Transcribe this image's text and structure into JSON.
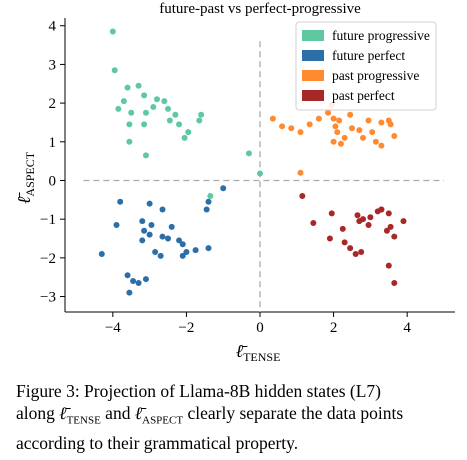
{
  "chart_data": {
    "type": "scatter",
    "title": "future-past vs perfect-progressive",
    "xlabel": "ℓ̄",
    "xlabel_sub": "TENSE",
    "ylabel": "ℓ̄",
    "ylabel_sub": "ASPECT",
    "xlim": [
      -5.3,
      5.3
    ],
    "ylim": [
      -3.4,
      4.2
    ],
    "xticks": [
      -4,
      -2,
      0,
      2,
      4
    ],
    "yticks": [
      -3,
      -2,
      -1,
      0,
      1,
      2,
      3,
      4
    ],
    "grid": false,
    "legend_position": "top-right",
    "reference_lines": {
      "x": 0,
      "y": 0,
      "style": "dashed",
      "color": "#aaaaaa"
    },
    "series": [
      {
        "name": "future progressive",
        "color": "#5ec8a0",
        "points": [
          [
            -4.0,
            3.85
          ],
          [
            -3.95,
            2.85
          ],
          [
            -3.6,
            2.4
          ],
          [
            -3.3,
            2.45
          ],
          [
            -3.15,
            2.2
          ],
          [
            -2.8,
            2.1
          ],
          [
            -2.6,
            2.05
          ],
          [
            -3.7,
            2.05
          ],
          [
            -3.85,
            1.85
          ],
          [
            -3.5,
            1.75
          ],
          [
            -3.1,
            1.75
          ],
          [
            -2.9,
            1.9
          ],
          [
            -2.5,
            1.85
          ],
          [
            -2.3,
            1.7
          ],
          [
            -2.45,
            1.55
          ],
          [
            -2.2,
            1.45
          ],
          [
            -1.6,
            1.7
          ],
          [
            -1.65,
            1.55
          ],
          [
            -1.95,
            1.25
          ],
          [
            -2.05,
            1.1
          ],
          [
            -3.55,
            1.45
          ],
          [
            -3.15,
            1.45
          ],
          [
            -3.55,
            1.0
          ],
          [
            -3.1,
            0.65
          ],
          [
            -0.3,
            0.7
          ],
          [
            0.0,
            0.18
          ],
          [
            -1.35,
            -0.4
          ]
        ]
      },
      {
        "name": "future perfect",
        "color": "#2a6fa8",
        "points": [
          [
            -1.0,
            -0.2
          ],
          [
            -1.4,
            -0.55
          ],
          [
            -1.45,
            -0.75
          ],
          [
            -3.0,
            -0.6
          ],
          [
            -3.8,
            -0.55
          ],
          [
            -2.65,
            -0.75
          ],
          [
            -3.9,
            -1.15
          ],
          [
            -3.2,
            -1.05
          ],
          [
            -3.15,
            -1.3
          ],
          [
            -2.95,
            -1.15
          ],
          [
            -3.0,
            -1.4
          ],
          [
            -2.4,
            -1.2
          ],
          [
            -2.65,
            -1.45
          ],
          [
            -2.5,
            -1.5
          ],
          [
            -3.2,
            -1.55
          ],
          [
            -2.2,
            -1.55
          ],
          [
            -2.1,
            -1.65
          ],
          [
            -2.85,
            -1.85
          ],
          [
            -2.7,
            -1.95
          ],
          [
            -1.75,
            -1.8
          ],
          [
            -2.0,
            -1.85
          ],
          [
            -2.1,
            -1.95
          ],
          [
            -1.4,
            -1.75
          ],
          [
            -4.3,
            -1.9
          ],
          [
            -3.6,
            -2.45
          ],
          [
            -3.45,
            -2.6
          ],
          [
            -3.3,
            -2.65
          ],
          [
            -3.1,
            -2.55
          ],
          [
            -3.55,
            -2.9
          ]
        ]
      },
      {
        "name": "past progressive",
        "color": "#ff8a30",
        "points": [
          [
            0.35,
            1.6
          ],
          [
            0.6,
            1.4
          ],
          [
            0.85,
            1.35
          ],
          [
            1.1,
            1.25
          ],
          [
            1.35,
            1.45
          ],
          [
            1.6,
            1.6
          ],
          [
            1.85,
            1.75
          ],
          [
            1.95,
            1.95
          ],
          [
            2.0,
            1.6
          ],
          [
            2.05,
            1.4
          ],
          [
            2.15,
            1.55
          ],
          [
            2.1,
            1.25
          ],
          [
            2.0,
            1.0
          ],
          [
            2.2,
            0.95
          ],
          [
            2.3,
            1.1
          ],
          [
            2.45,
            1.7
          ],
          [
            2.5,
            1.35
          ],
          [
            2.7,
            1.3
          ],
          [
            2.8,
            1.1
          ],
          [
            2.95,
            1.55
          ],
          [
            3.05,
            1.25
          ],
          [
            3.15,
            1.0
          ],
          [
            3.3,
            1.5
          ],
          [
            3.5,
            1.55
          ],
          [
            3.65,
            1.15
          ],
          [
            3.3,
            0.9
          ],
          [
            3.55,
            1.45
          ],
          [
            1.1,
            0.2
          ]
        ]
      },
      {
        "name": "past perfect",
        "color": "#a82828",
        "points": [
          [
            1.15,
            -0.4
          ],
          [
            1.45,
            -1.1
          ],
          [
            1.9,
            -1.5
          ],
          [
            1.95,
            -0.85
          ],
          [
            2.25,
            -1.25
          ],
          [
            2.3,
            -1.6
          ],
          [
            2.45,
            -1.75
          ],
          [
            2.6,
            -1.9
          ],
          [
            2.75,
            -1.85
          ],
          [
            2.65,
            -0.9
          ],
          [
            2.7,
            -1.05
          ],
          [
            2.8,
            -1.0
          ],
          [
            2.95,
            -1.15
          ],
          [
            3.0,
            -0.95
          ],
          [
            3.2,
            -0.8
          ],
          [
            3.3,
            -0.75
          ],
          [
            3.45,
            -1.3
          ],
          [
            3.55,
            -1.2
          ],
          [
            3.65,
            -1.45
          ],
          [
            3.5,
            -0.85
          ],
          [
            3.9,
            -1.05
          ],
          [
            3.5,
            -2.2
          ],
          [
            3.65,
            -2.65
          ],
          [
            3.3,
            -0.75
          ]
        ]
      }
    ]
  },
  "caption": {
    "part1": "Figure 3:  Projection of Llama-8B hidden states (L7)",
    "part2_prefix": "along ",
    "sym": "ℓ̄",
    "tense_sub": "TENSE",
    "and": " and ",
    "aspect_sub": "ASPECT",
    "part2_suffix": " clearly separate the data points",
    "part3": "according to their grammatical property."
  }
}
